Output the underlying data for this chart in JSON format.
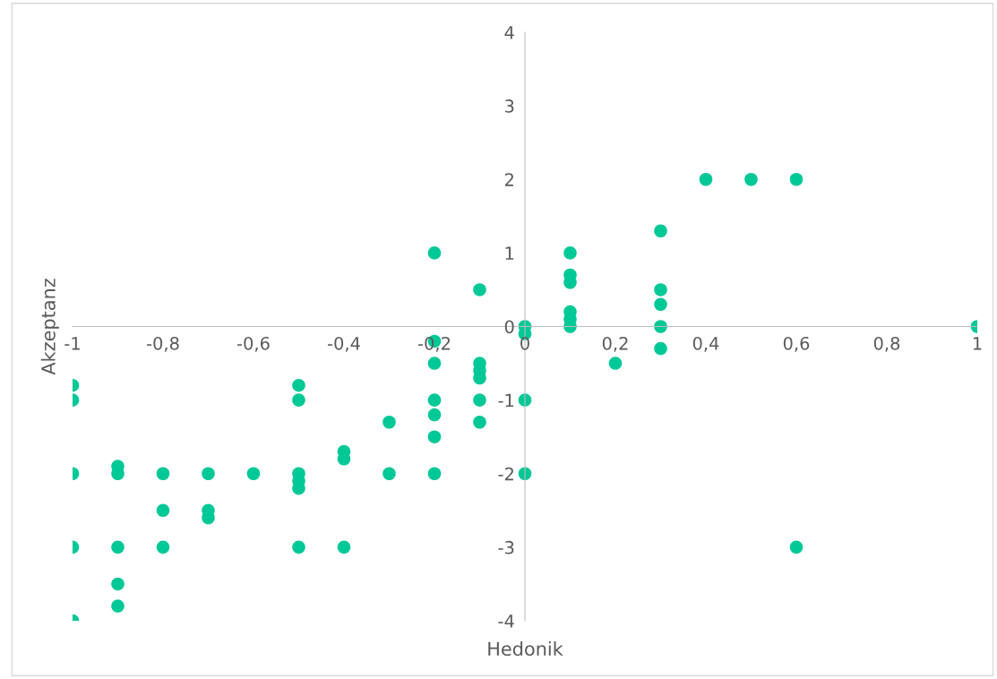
{
  "chart_data": {
    "type": "scatter",
    "xlabel": "Hedonik",
    "ylabel": "Akzeptanz",
    "xlim": [
      -1,
      1
    ],
    "ylim": [
      -4,
      4
    ],
    "xticks": [
      {
        "value": -1,
        "label": "-1"
      },
      {
        "value": -0.8,
        "label": "-0,8"
      },
      {
        "value": -0.6,
        "label": "-0,6"
      },
      {
        "value": -0.4,
        "label": "-0,4"
      },
      {
        "value": -0.2,
        "label": "-0,2"
      },
      0,
      {
        "value": 0.2,
        "label": "0,2"
      },
      {
        "value": 0.4,
        "label": "0,4"
      },
      {
        "value": 0.6,
        "label": "0,6"
      },
      {
        "value": 0.8,
        "label": "0,8"
      },
      1
    ],
    "yticks": [
      -4,
      -3,
      -2,
      -1,
      0,
      1,
      2,
      3,
      4
    ],
    "grid": false,
    "marker": "circle",
    "series": [
      {
        "color": "#00c896",
        "x": [
          -1,
          -1,
          -1,
          -1,
          -1,
          -0.9,
          -0.9,
          -0.9,
          -0.9,
          -0.9,
          -0.8,
          -0.8,
          -0.8,
          -0.7,
          -0.7,
          -0.7,
          -0.6,
          -0.5,
          -0.5,
          -0.5,
          -0.5,
          -0.5,
          -0.5,
          -0.4,
          -0.4,
          -0.4,
          -0.3,
          -0.3,
          -0.2,
          -0.2,
          -0.2,
          -0.2,
          -0.2,
          -0.2,
          -0.2,
          -0.1,
          -0.1,
          -0.1,
          -0.1,
          -0.1,
          -0.1,
          0,
          0,
          0,
          0,
          0.1,
          0.1,
          0.1,
          0.1,
          0.1,
          0.1,
          0.2,
          0.3,
          0.3,
          0.3,
          0.3,
          0.3,
          0.4,
          0.5,
          0.6,
          0.6,
          1
        ],
        "values": [
          -0.8,
          -1,
          -2,
          -3,
          -4,
          -1.9,
          -2,
          -3,
          -3.5,
          -3.8,
          -2,
          -2.5,
          -3,
          -2,
          -2.5,
          -2.6,
          -2,
          -0.8,
          -1,
          -2,
          -2.1,
          -2.2,
          -3,
          -1.7,
          -1.8,
          -3,
          -1.3,
          -2,
          1,
          -0.2,
          -0.5,
          -1,
          -1.2,
          -1.5,
          -2,
          0.5,
          -0.5,
          -0.6,
          -0.7,
          -1,
          -1.3,
          0,
          -0.1,
          -1,
          -2,
          1,
          0.7,
          0.6,
          0.2,
          0.1,
          0,
          -0.5,
          1.3,
          0.5,
          0.3,
          0,
          -0.3,
          2,
          2,
          2,
          -3,
          0
        ]
      }
    ]
  }
}
